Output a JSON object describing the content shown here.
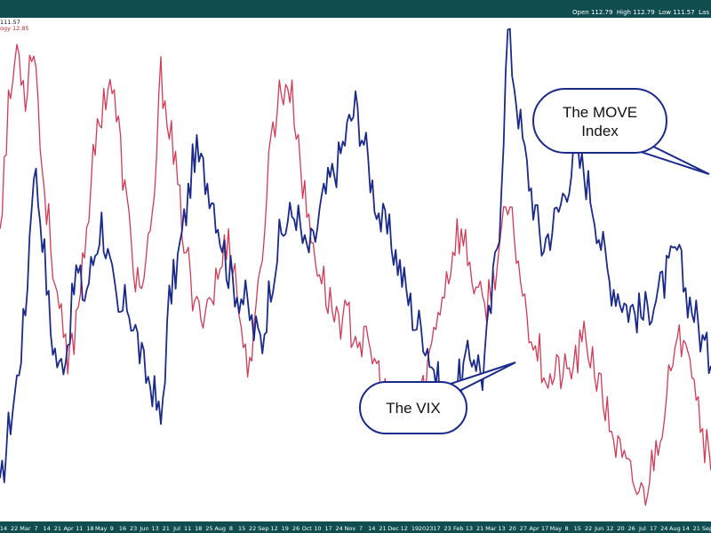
{
  "header": {
    "ohlc": [
      {
        "label": "Open",
        "value": "112.79"
      },
      {
        "label": "High",
        "value": "112.79"
      },
      {
        "label": "Low",
        "value": "111.57"
      },
      {
        "label": "Las",
        "value": ""
      }
    ]
  },
  "legend": {
    "line1": "111.57",
    "line2": "ogy 12.85"
  },
  "callouts": {
    "move": "The MOVE\nIndex",
    "vix": "The VIX"
  },
  "colors": {
    "move": "#1a2a8c",
    "vix": "#d23a55",
    "frame": "#0f4d4f",
    "callout_stroke": "#1a2a8c"
  },
  "chart_data": {
    "type": "line",
    "x_range": [
      "2022-02",
      "2023-09"
    ],
    "y_axis": "hidden",
    "grid": false,
    "series": [
      {
        "name": "The MOVE Index",
        "values": [
          0.05,
          0.18,
          0.28,
          0.42,
          0.72,
          0.58,
          0.38,
          0.3,
          0.36,
          0.5,
          0.45,
          0.52,
          0.6,
          0.5,
          0.4,
          0.44,
          0.38,
          0.3,
          0.27,
          0.19,
          0.44,
          0.52,
          0.62,
          0.74,
          0.7,
          0.66,
          0.58,
          0.5,
          0.46,
          0.44,
          0.38,
          0.36,
          0.48,
          0.56,
          0.6,
          0.62,
          0.54,
          0.55,
          0.63,
          0.68,
          0.72,
          0.78,
          0.83,
          0.76,
          0.67,
          0.6,
          0.57,
          0.52,
          0.46,
          0.4,
          0.38,
          0.32,
          0.26,
          0.22,
          0.27,
          0.31,
          0.34,
          0.29,
          0.43,
          0.6,
          0.98,
          0.85,
          0.73,
          0.64,
          0.55,
          0.58,
          0.62,
          0.68,
          0.73,
          0.7,
          0.64,
          0.56,
          0.48,
          0.46,
          0.43,
          0.42,
          0.41,
          0.44,
          0.46,
          0.5,
          0.54,
          0.46,
          0.42,
          0.36,
          0.31
        ],
        "x_labels_sample": "weekly"
      },
      {
        "name": "The VIX",
        "values": [
          0.6,
          0.82,
          0.95,
          0.86,
          0.97,
          0.7,
          0.56,
          0.42,
          0.3,
          0.4,
          0.56,
          0.71,
          0.83,
          0.89,
          0.78,
          0.62,
          0.49,
          0.47,
          0.59,
          0.89,
          0.8,
          0.66,
          0.54,
          0.41,
          0.43,
          0.45,
          0.5,
          0.58,
          0.46,
          0.32,
          0.35,
          0.55,
          0.77,
          0.85,
          0.88,
          0.8,
          0.64,
          0.55,
          0.49,
          0.43,
          0.41,
          0.4,
          0.38,
          0.35,
          0.33,
          0.28,
          0.22,
          0.2,
          0.19,
          0.22,
          0.26,
          0.35,
          0.44,
          0.5,
          0.58,
          0.55,
          0.48,
          0.42,
          0.46,
          0.55,
          0.62,
          0.55,
          0.43,
          0.37,
          0.32,
          0.28,
          0.3,
          0.29,
          0.32,
          0.36,
          0.33,
          0.25,
          0.2,
          0.14,
          0.1,
          0.07,
          0.05,
          0.11,
          0.19,
          0.27,
          0.33,
          0.4,
          0.3,
          0.18,
          0.1
        ]
      }
    ],
    "x_ticks": [
      "14",
      "22",
      "Mar",
      "7",
      "14",
      "21",
      "Apr",
      "11",
      "18",
      "May",
      "9",
      "16",
      "23",
      "Jun",
      "13",
      "21",
      "Jul",
      "11",
      "18",
      "25",
      "Aug",
      "8",
      "15",
      "22",
      "Sep",
      "12",
      "19",
      "26",
      "Oct",
      "10",
      "17",
      "24",
      "Nov",
      "7",
      "14",
      "21",
      "Dec",
      "12",
      "19",
      "2023",
      "17",
      "23",
      "Feb",
      "13",
      "21",
      "Mar",
      "13",
      "20",
      "27",
      "Apr",
      "17",
      "May",
      "8",
      "15",
      "22",
      "Jun",
      "12",
      "20",
      "26",
      "Jul",
      "17",
      "24",
      "Aug",
      "14",
      "21",
      "Sep"
    ]
  }
}
